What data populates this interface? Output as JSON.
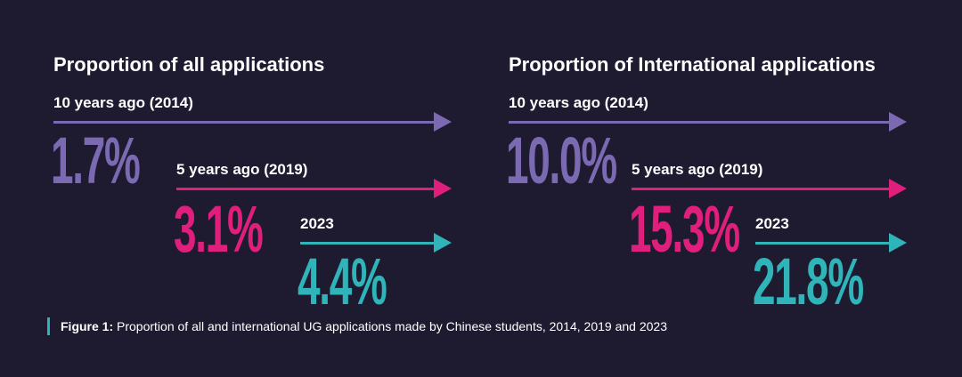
{
  "chart_data": {
    "type": "infographic-arrows",
    "caption_prefix": "Figure 1:",
    "caption": " Proportion of all and international UG applications made by Chinese students, 2014, 2019 and 2023",
    "colors": [
      "#7b69b2",
      "#e01e7c",
      "#2fb5b9"
    ],
    "panels": [
      {
        "title": "Proportion of all applications",
        "rows": [
          {
            "label": "10 years ago (2014)",
            "value": 1.7,
            "display": "1.7%"
          },
          {
            "label": "5 years ago (2019)",
            "value": 3.1,
            "display": "3.1%"
          },
          {
            "label": "2023",
            "value": 4.4,
            "display": "4.4%"
          }
        ]
      },
      {
        "title": "Proportion of International applications",
        "rows": [
          {
            "label": "10 years ago (2014)",
            "value": 10.0,
            "display": "10.0%"
          },
          {
            "label": "5 years ago (2019)",
            "value": 15.3,
            "display": "15.3%"
          },
          {
            "label": "2023",
            "value": 21.8,
            "display": "21.8%"
          }
        ]
      }
    ]
  }
}
